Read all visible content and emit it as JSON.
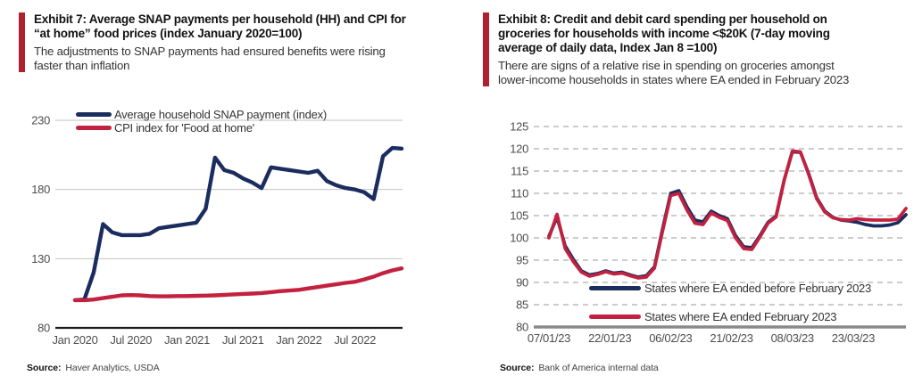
{
  "exhibits": [
    {
      "id": "exhibit-7",
      "title": "Exhibit 7: Average SNAP payments per household (HH) and CPI for\n“at home” food prices (index January  2020=100)",
      "subtitle": "The adjustments to SNAP payments had ensured benefits were rising\nfaster than inflation",
      "source_label": "Source:",
      "source": "Haver Analytics, USDA"
    },
    {
      "id": "exhibit-8",
      "title": "Exhibit 8: Credit and debit card spending per household on\ngroceries for households with income <$20K (7-day moving\naverage of daily data, Index Jan 8 =100)",
      "subtitle": "There are signs of a relative rise in spending on groceries amongst\nlower-income households in states where EA ended in February 2023",
      "source_label": "Source:",
      "source": "Bank of America internal data"
    }
  ],
  "colors": {
    "accent_bar": "#B1202F",
    "navy": "#1B2C5E",
    "red": "#C2213F",
    "grid_solid": "#C2C2C2",
    "grid_dashed": "#ADADAD",
    "axis_left": "#1C1C1C",
    "axis_right": "#8A8A8A",
    "tick_text": "#4D4D4D"
  },
  "chart_data": [
    {
      "type": "line",
      "title": "Average SNAP payments per household (HH) and CPI for at-home food prices, index January 2020=100",
      "x_unit": "month",
      "x_start": "Jan 2020",
      "x_end": "Dec 2022",
      "x_tick_labels": [
        "Jan 2020",
        "Jul 2020",
        "Jan 2021",
        "Jul 2021",
        "Jan 2022",
        "Jul 2022"
      ],
      "x_tick_positions": [
        0,
        6,
        12,
        18,
        24,
        30
      ],
      "x_step": 1,
      "x_max": 35,
      "ylim": [
        80,
        230
      ],
      "yticks": [
        80,
        130,
        180,
        230
      ],
      "grid_style": "solid",
      "legend_position": "top-left-inside",
      "series": [
        {
          "name": "Average household SNAP payment (index)",
          "color": "#1B2C5E",
          "values": [
            100,
            100.5,
            120,
            155,
            149,
            147,
            147,
            147,
            148,
            152,
            153,
            154,
            155,
            156,
            166,
            203,
            194,
            192,
            188,
            185,
            181,
            196,
            195,
            194,
            193,
            192,
            193.5,
            186,
            183,
            181,
            180,
            178,
            173,
            204,
            210,
            209.5
          ]
        },
        {
          "name": "CPI index for 'Food at home'",
          "color": "#C2213F",
          "values": [
            100,
            100,
            100.5,
            101.5,
            102.5,
            103.5,
            103.7,
            103.5,
            103,
            102.8,
            102.8,
            103,
            103,
            103.2,
            103.3,
            103.5,
            103.8,
            104.2,
            104.5,
            104.8,
            105.2,
            105.8,
            106.5,
            107,
            107.5,
            108.5,
            109.5,
            110.5,
            111.5,
            112.5,
            113.3,
            115,
            117,
            119.5,
            121.5,
            123
          ]
        }
      ]
    },
    {
      "type": "line",
      "title": "Credit and debit card spending per household on groceries, households with income <$20K, 7-day moving average of daily data, Index Jan 8 =100",
      "x_unit": "day",
      "x_start": "07/01/23",
      "x_tick_labels": [
        "07/01/23",
        "22/01/23",
        "06/02/23",
        "21/02/23",
        "08/03/23",
        "23/03/23"
      ],
      "x_tick_positions": [
        0,
        15,
        30,
        45,
        60,
        75
      ],
      "x_step": 2,
      "x_max": 88,
      "ylim": [
        80,
        125
      ],
      "yticks": [
        80,
        85,
        90,
        95,
        100,
        105,
        110,
        115,
        120,
        125
      ],
      "grid_style": "dashed",
      "legend_position": "bottom-inside",
      "series": [
        {
          "name": "States where EA ended before February 2023",
          "color": "#1B2C5E",
          "values": [
            100.4,
            104.6,
            98.2,
            95.2,
            92.6,
            91.7,
            92.0,
            92.6,
            92.1,
            92.3,
            91.7,
            91.2,
            91.5,
            93.5,
            102.0,
            110.0,
            110.6,
            107.0,
            104.0,
            103.6,
            106.0,
            105.0,
            104.3,
            100.5,
            98.0,
            97.8,
            100.5,
            103.5,
            104.9,
            113.0,
            119.3,
            119.2,
            114.5,
            109.0,
            106.0,
            104.6,
            104.0,
            103.8,
            103.5,
            103.0,
            102.7,
            102.7,
            102.9,
            103.4,
            105.2
          ]
        },
        {
          "name": "States where EA ended February 2023",
          "color": "#C2213F",
          "values": [
            100.0,
            105.3,
            97.6,
            94.7,
            92.3,
            91.4,
            91.8,
            92.4,
            91.9,
            92.1,
            91.5,
            91.0,
            91.2,
            93.2,
            101.5,
            109.5,
            110.0,
            106.3,
            103.3,
            103.0,
            105.6,
            104.6,
            103.9,
            100.0,
            97.6,
            97.4,
            100.2,
            103.3,
            104.7,
            113.0,
            119.5,
            119.3,
            114.3,
            108.8,
            105.8,
            104.5,
            104.1,
            104.0,
            104.3,
            104.1,
            104.0,
            104.0,
            104.0,
            104.2,
            106.6
          ]
        }
      ]
    }
  ]
}
